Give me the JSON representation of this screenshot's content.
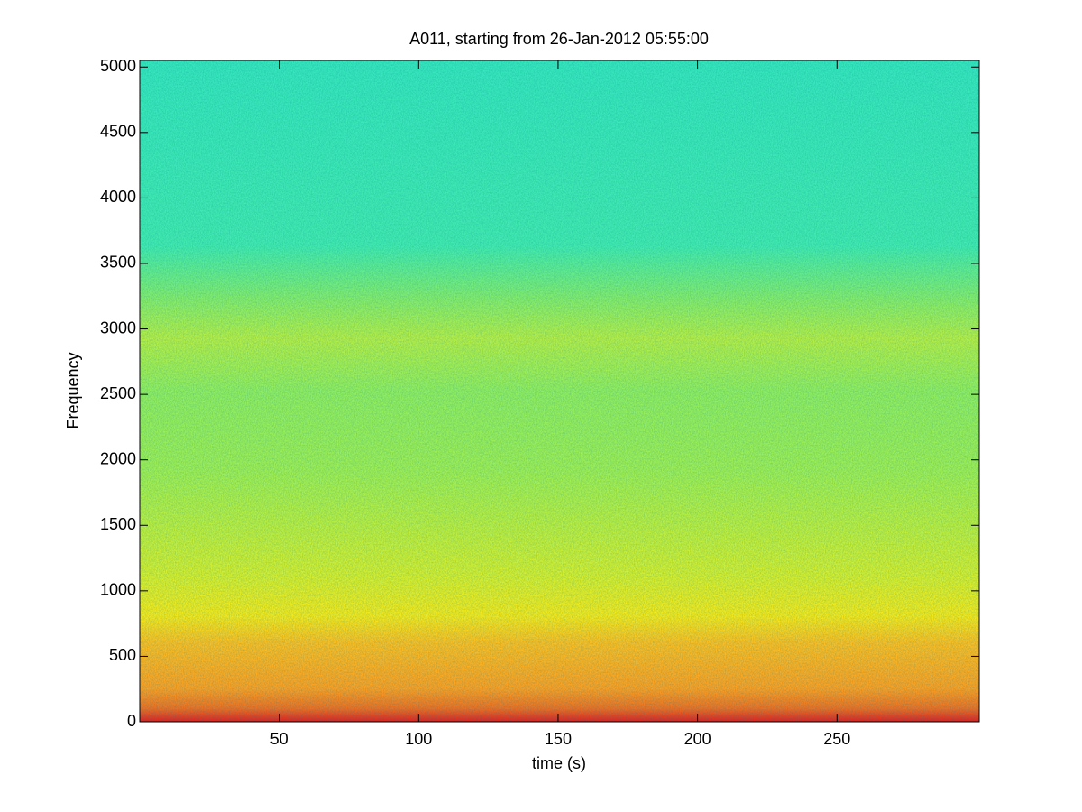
{
  "chart_data": {
    "type": "spectrogram",
    "title": "A011, starting from 26-Jan-2012 05:55:00",
    "x_label": "time (s)",
    "y_label": "Frequency",
    "xlim": [
      0,
      301
    ],
    "xticks": [
      50,
      100,
      150,
      200,
      250
    ],
    "ylim": [
      0,
      5050
    ],
    "yticks": [
      0,
      500,
      1000,
      1500,
      2000,
      2500,
      3000,
      3500,
      4000,
      4500,
      5000
    ]
  }
}
